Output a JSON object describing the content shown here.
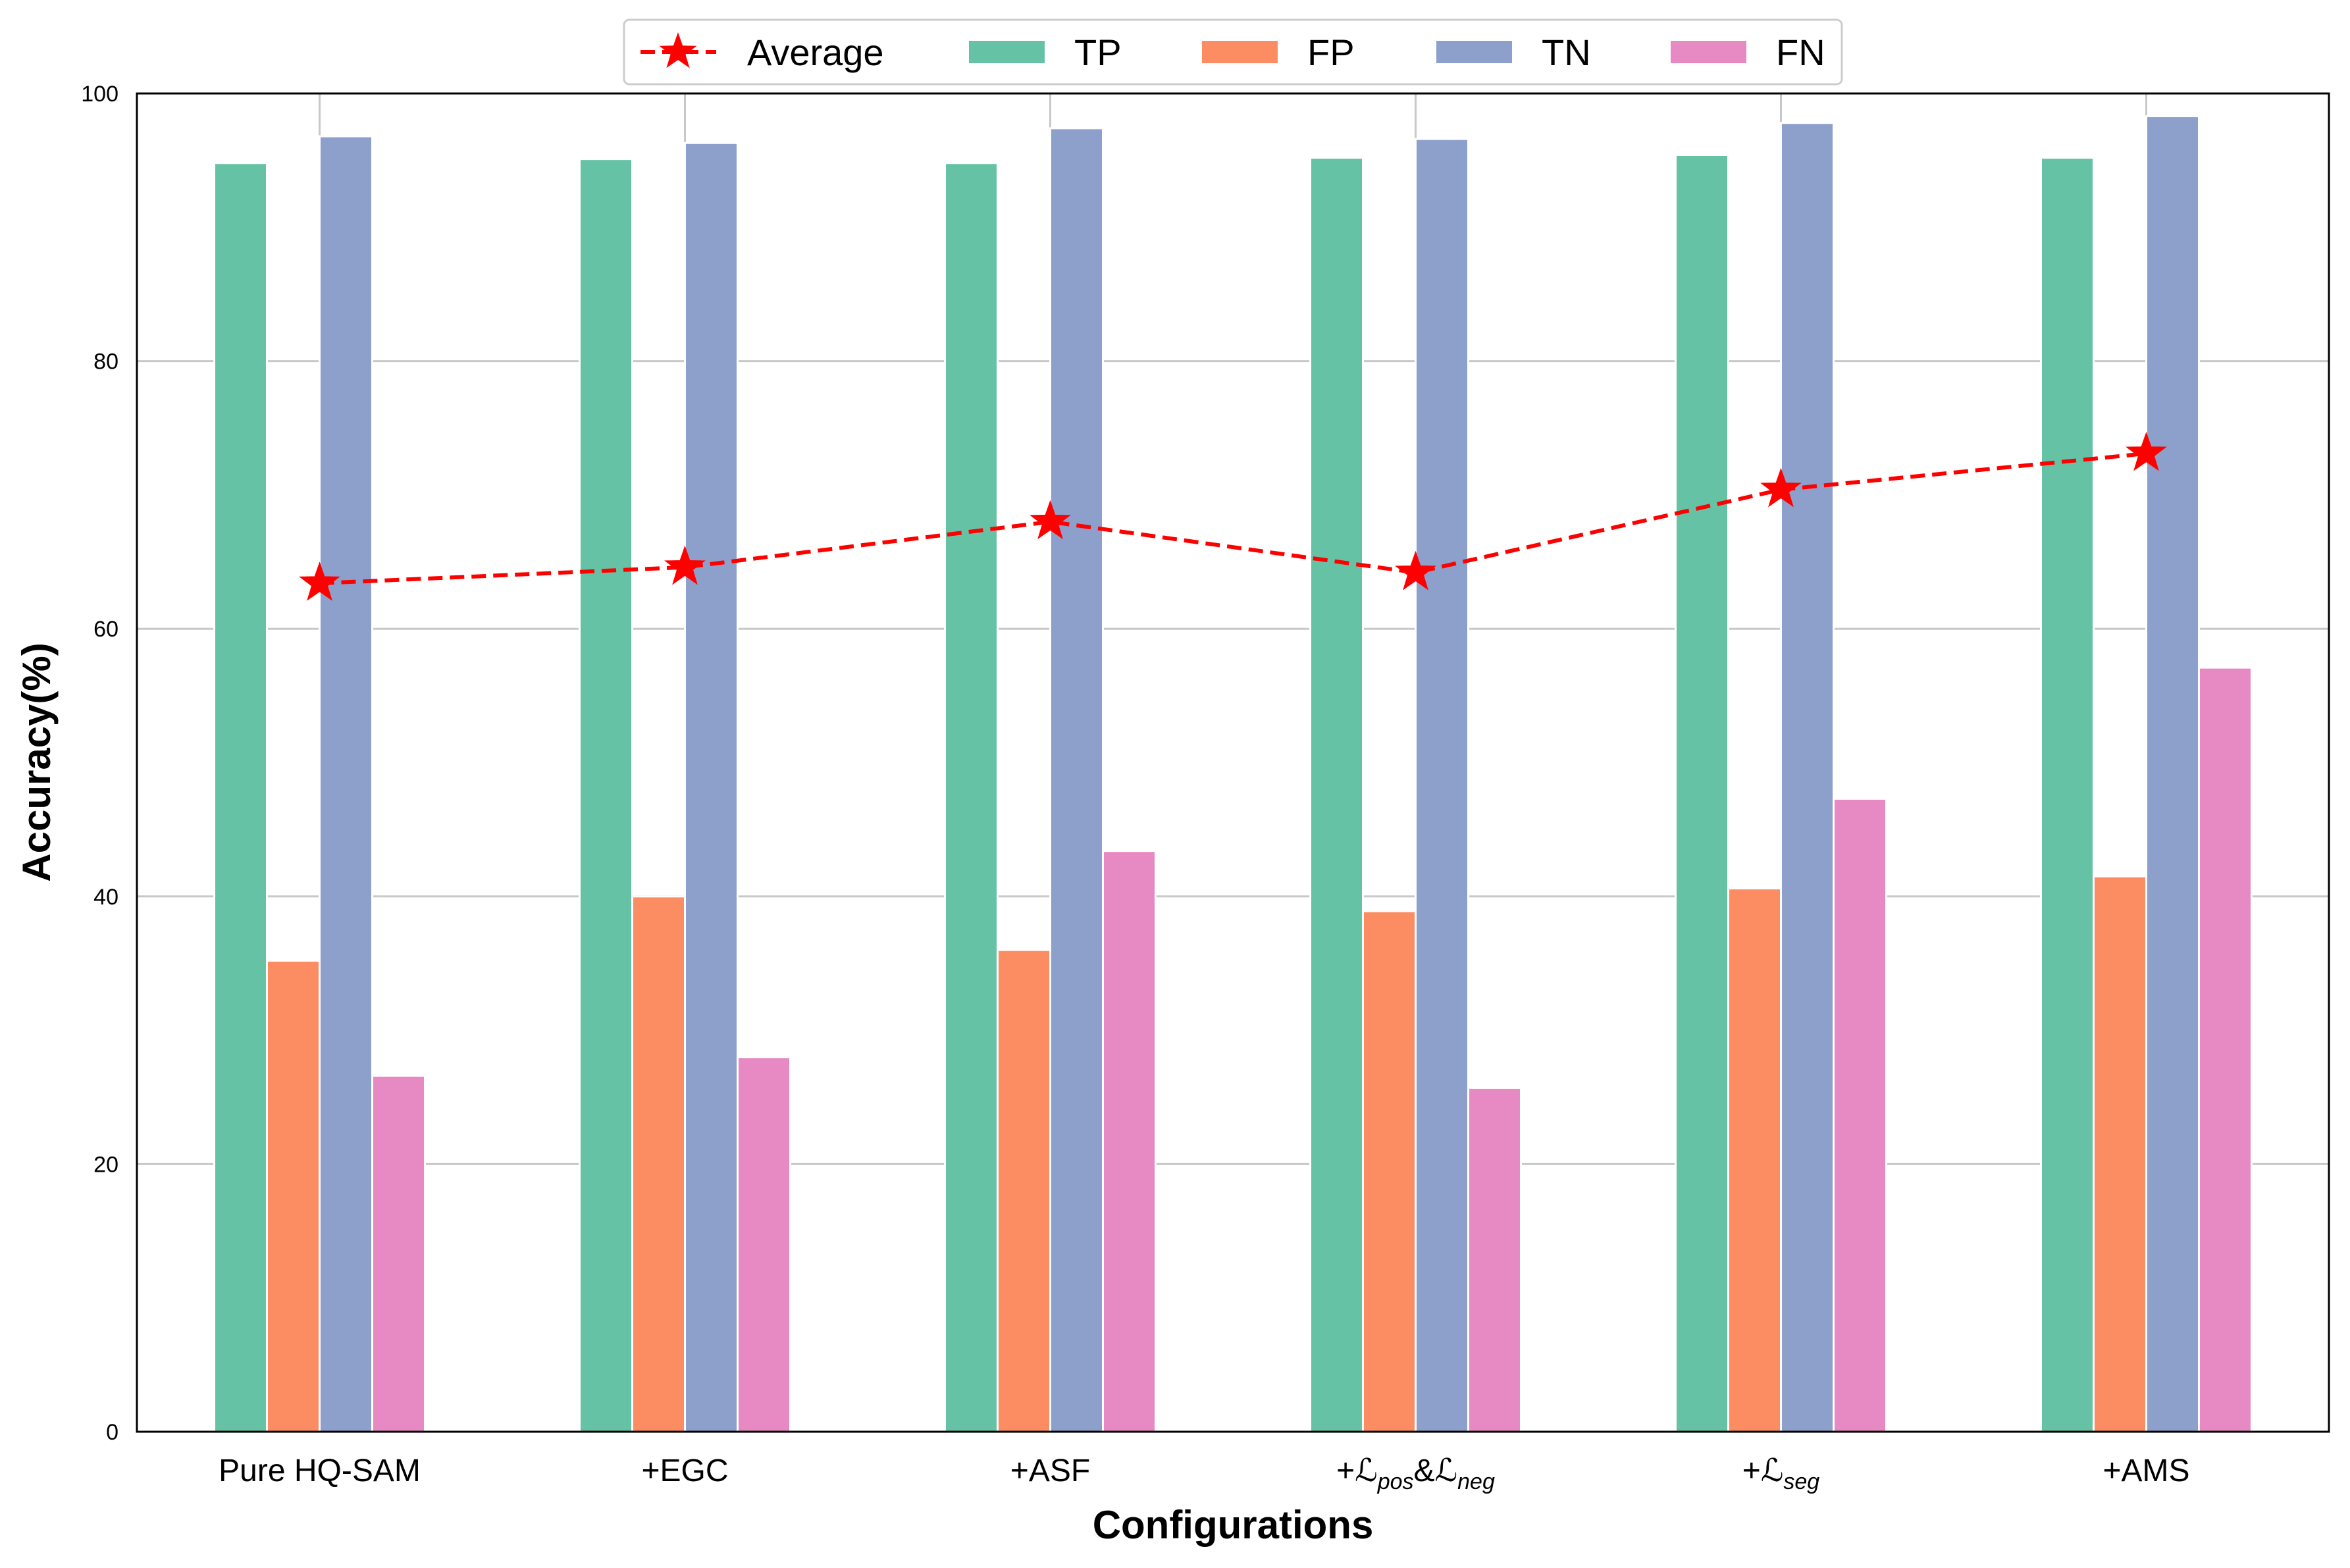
{
  "chart_data": {
    "type": "bar",
    "title": "",
    "xlabel": "Configurations",
    "ylabel": "Accuracy(%)",
    "ylim": [
      0,
      100
    ],
    "yticks": [
      0,
      20,
      40,
      60,
      80,
      100
    ],
    "grid": true,
    "legend_position": "top-center-outside",
    "categories": [
      "Pure HQ-SAM",
      "+EGC",
      "+ASF",
      "+ℒpos&ℒneg",
      "+ℒseg",
      "+AMS"
    ],
    "category_labels": [
      {
        "text": "Pure HQ-SAM"
      },
      {
        "text": "+EGC"
      },
      {
        "text": "+ASF"
      },
      {
        "parts": [
          [
            "+",
            ""
          ],
          [
            "ℒ",
            ""
          ],
          [
            "pos",
            "sub"
          ],
          [
            "&",
            ""
          ],
          [
            "ℒ",
            ""
          ],
          [
            "neg",
            "sub"
          ]
        ]
      },
      {
        "parts": [
          [
            "+",
            ""
          ],
          [
            "ℒ",
            ""
          ],
          [
            "seg",
            "sub"
          ]
        ]
      },
      {
        "text": "+AMS"
      }
    ],
    "series": [
      {
        "name": "TP",
        "color": "#66c2a5",
        "values": [
          94.8,
          95.1,
          94.8,
          95.2,
          95.4,
          95.2
        ]
      },
      {
        "name": "FP",
        "color": "#fc8d62",
        "values": [
          35.2,
          40.0,
          36.0,
          38.9,
          40.6,
          41.5
        ]
      },
      {
        "name": "TN",
        "color": "#8da0cb",
        "values": [
          96.8,
          96.3,
          97.4,
          96.6,
          97.8,
          98.3
        ]
      },
      {
        "name": "FN",
        "color": "#e78ac3",
        "values": [
          26.6,
          28.0,
          43.4,
          25.7,
          47.3,
          57.1
        ]
      }
    ],
    "line_series": {
      "name": "Average",
      "color": "#ff0000",
      "style": "dashed",
      "marker": "star",
      "values": [
        63.4,
        64.6,
        68.0,
        64.2,
        70.4,
        73.1
      ]
    }
  }
}
